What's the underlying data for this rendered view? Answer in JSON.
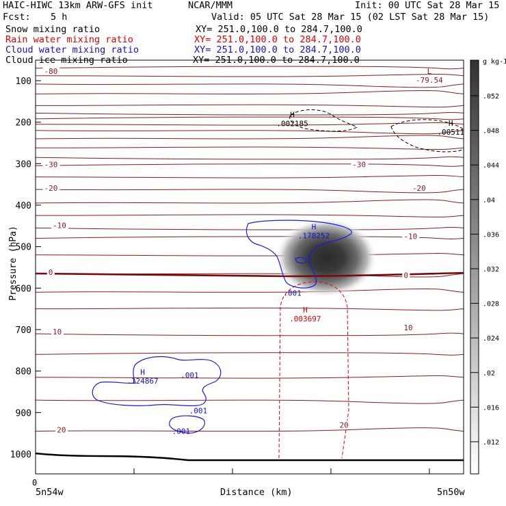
{
  "header": {
    "model": "HAIC-HIWC 13km ARW-GFS init",
    "org": "NCAR/MMM",
    "init": "Init: 00 UTC Sat 28 Mar 15",
    "fcst_label": "Fcst:",
    "fcst_value": "5 h",
    "valid": "Valid: 05 UTC Sat 28 Mar 15 (02 LST Sat 28 Mar 15)"
  },
  "fields": [
    {
      "name": "Snow mixing ratio",
      "xy": "XY= 251.0,100.0 to 284.7,100.0",
      "color": "#000000"
    },
    {
      "name": "Rain water mixing ratio",
      "xy": "XY= 251.0,100.0 to 284.7,100.0",
      "color": "#e00000"
    },
    {
      "name": "Cloud water mixing ratio",
      "xy": "XY= 251.0,100.0 to 284.7,100.0",
      "color": "#1010e0"
    },
    {
      "name": "Cloud ice mixing ratio",
      "xy": "XY= 251.0,100.0 to 284.7,100.0",
      "color": "#000000"
    }
  ],
  "chart_data": {
    "type": "contour-cross-section",
    "ylabel": "Pressure (hPa)",
    "xlabel": "Distance (km)",
    "y_ticks": [
      100,
      200,
      300,
      400,
      500,
      600,
      700,
      800,
      900,
      1000
    ],
    "ylim": [
      1050,
      50
    ],
    "x_start_tick": "0",
    "x_left_label": "5n54w",
    "x_right_label": "5n50w",
    "colorbar": {
      "unit": "g kg-1",
      "ticks": [
        ".052",
        ".048",
        ".044",
        ".04",
        ".036",
        ".032",
        ".028",
        ".024",
        ".02",
        ".016",
        ".012"
      ]
    },
    "temperature_labels": [
      {
        "text": "-80",
        "p": 80,
        "xf": 0.02
      },
      {
        "text": "-30",
        "p": 305,
        "xf": 0.02
      },
      {
        "text": "-30",
        "p": 305,
        "xf": 0.74
      },
      {
        "text": "-20",
        "p": 362,
        "xf": 0.02
      },
      {
        "text": "-20",
        "p": 362,
        "xf": 0.88
      },
      {
        "text": "-10",
        "p": 452,
        "xf": 0.04
      },
      {
        "text": "-10",
        "p": 478,
        "xf": 0.86
      },
      {
        "text": "0",
        "p": 565,
        "xf": 0.03
      },
      {
        "text": "0",
        "p": 572,
        "xf": 0.86
      },
      {
        "text": "10",
        "p": 708,
        "xf": 0.04
      },
      {
        "text": "10",
        "p": 698,
        "xf": 0.86
      },
      {
        "text": "20",
        "p": 945,
        "xf": 0.05
      },
      {
        "text": "20",
        "p": 933,
        "xf": 0.71
      }
    ],
    "isotherm_pressures": [
      70,
      88,
      108,
      132,
      160,
      178,
      192,
      205,
      220,
      240,
      262,
      285,
      305,
      332,
      362,
      395,
      425,
      455,
      480,
      520,
      565,
      610,
      650,
      710,
      760,
      815,
      870,
      945
    ],
    "extrema": [
      {
        "type": "L",
        "value": "-79.54",
        "p": 95,
        "xf": 0.92,
        "color": "#8b1a1a"
      },
      {
        "type": "H",
        "value": ".002185",
        "p": 200,
        "xf": 0.6,
        "color": "#000000"
      },
      {
        "type": "H",
        "value": ".00511",
        "p": 220,
        "xf": 0.97,
        "color": "#000000"
      },
      {
        "type": "H",
        "value": ".178252",
        "p": 470,
        "xf": 0.65,
        "color": "#1010e0"
      },
      {
        "type": "H",
        "value": ".003697",
        "p": 670,
        "xf": 0.63,
        "color": "#e00000"
      },
      {
        "type": "H",
        "value": ".124867",
        "p": 820,
        "xf": 0.25,
        "color": "#1010e0"
      }
    ],
    "cloud_water_labels": [
      {
        "text": ".001",
        "p": 612,
        "xf": 0.6
      },
      {
        "text": ".001",
        "p": 810,
        "xf": 0.36
      },
      {
        "text": ".001",
        "p": 895,
        "xf": 0.38
      },
      {
        "text": ".001",
        "p": 945,
        "xf": 0.34
      }
    ],
    "snow_max": {
      "value": 0.052,
      "p": 530,
      "xf": 0.7
    }
  }
}
